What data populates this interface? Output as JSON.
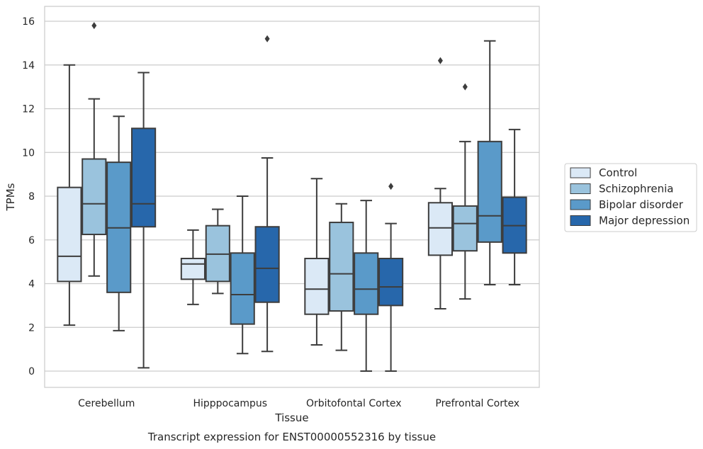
{
  "caption": "Transcript expression for ENST00000552316 by tissue",
  "chart_data": {
    "type": "box",
    "title": "",
    "xlabel": "Tissue",
    "ylabel": "TPMs",
    "ylim": [
      -0.75,
      16.6
    ],
    "yticks": [
      0,
      2,
      4,
      6,
      8,
      10,
      12,
      14,
      16
    ],
    "grid": "horizontal",
    "legend_position": "right",
    "categories": [
      "Cerebellum",
      "Hipppocampus",
      "Orbitofontal Cortex",
      "Prefrontal Cortex"
    ],
    "series": [
      {
        "name": "Control",
        "color": "#dbe9f6",
        "boxes": [
          {
            "whisker_low": 2.1,
            "q1": 4.1,
            "median": 5.25,
            "q3": 8.4,
            "whisker_high": 14.0,
            "outliers": []
          },
          {
            "whisker_low": 3.05,
            "q1": 4.2,
            "median": 4.9,
            "q3": 5.15,
            "whisker_high": 6.45,
            "outliers": []
          },
          {
            "whisker_low": 1.2,
            "q1": 2.6,
            "median": 3.75,
            "q3": 5.15,
            "whisker_high": 8.8,
            "outliers": []
          },
          {
            "whisker_low": 2.85,
            "q1": 5.3,
            "median": 6.55,
            "q3": 7.7,
            "whisker_high": 8.35,
            "outliers": [
              14.2
            ]
          }
        ]
      },
      {
        "name": "Schizophrenia",
        "color": "#9ac3dd",
        "boxes": [
          {
            "whisker_low": 4.35,
            "q1": 6.25,
            "median": 7.65,
            "q3": 9.7,
            "whisker_high": 12.45,
            "outliers": [
              15.8
            ]
          },
          {
            "whisker_low": 3.55,
            "q1": 4.1,
            "median": 5.35,
            "q3": 6.65,
            "whisker_high": 7.4,
            "outliers": []
          },
          {
            "whisker_low": 0.95,
            "q1": 2.75,
            "median": 4.45,
            "q3": 6.8,
            "whisker_high": 7.65,
            "outliers": []
          },
          {
            "whisker_low": 3.3,
            "q1": 5.5,
            "median": 6.75,
            "q3": 7.55,
            "whisker_high": 10.5,
            "outliers": [
              13.0
            ]
          }
        ]
      },
      {
        "name": "Bipolar disorder",
        "color": "#5a9ac9",
        "boxes": [
          {
            "whisker_low": 1.85,
            "q1": 3.6,
            "median": 6.55,
            "q3": 9.55,
            "whisker_high": 11.65,
            "outliers": []
          },
          {
            "whisker_low": 0.8,
            "q1": 2.15,
            "median": 3.5,
            "q3": 5.4,
            "whisker_high": 8.0,
            "outliers": []
          },
          {
            "whisker_low": 0.0,
            "q1": 2.6,
            "median": 3.75,
            "q3": 5.4,
            "whisker_high": 7.8,
            "outliers": []
          },
          {
            "whisker_low": 3.95,
            "q1": 5.9,
            "median": 7.1,
            "q3": 10.5,
            "whisker_high": 15.1,
            "outliers": []
          }
        ]
      },
      {
        "name": "Major depression",
        "color": "#2767ab",
        "boxes": [
          {
            "whisker_low": 0.15,
            "q1": 6.6,
            "median": 7.65,
            "q3": 11.1,
            "whisker_high": 13.65,
            "outliers": []
          },
          {
            "whisker_low": 0.9,
            "q1": 3.15,
            "median": 4.7,
            "q3": 6.6,
            "whisker_high": 9.75,
            "outliers": [
              15.2
            ]
          },
          {
            "whisker_low": 0.0,
            "q1": 3.0,
            "median": 3.85,
            "q3": 5.15,
            "whisker_high": 6.75,
            "outliers": [
              8.45
            ]
          },
          {
            "whisker_low": 3.95,
            "q1": 5.4,
            "median": 6.65,
            "q3": 7.95,
            "whisker_high": 11.05,
            "outliers": []
          }
        ]
      }
    ]
  }
}
